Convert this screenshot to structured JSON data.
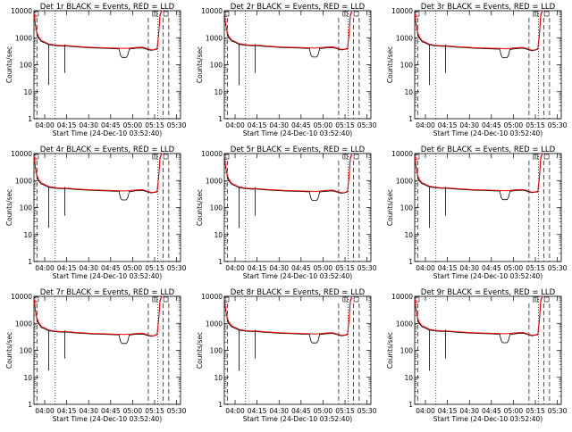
{
  "chart_data": [
    {
      "type": "line",
      "title": "Det 1r BLACK = Events, RED = LLD",
      "xlabel": "Start Time (24-Dec-10 03:52:40)",
      "ylabel": "Counts/sec",
      "x_tick_labels": [
        "04:00",
        "04:15",
        "04:30",
        "04:45",
        "05:00",
        "05:15",
        "05:30"
      ],
      "y_tick_labels": [
        "1",
        "10",
        "100",
        "1000",
        "10000"
      ],
      "y_scale": "log",
      "ylim": [
        1,
        10000
      ],
      "series": [
        {
          "name": "Events",
          "color": "#000000"
        },
        {
          "name": "LLD",
          "color": "#ff0000"
        }
      ]
    },
    {
      "type": "line",
      "title": "Det 2r BLACK = Events, RED = LLD",
      "xlabel": "Start Time (24-Dec-10 03:52:40)",
      "ylabel": "Counts/sec",
      "x_tick_labels": [
        "04:00",
        "04:15",
        "04:30",
        "04:45",
        "05:00",
        "05:15",
        "05:30"
      ],
      "y_tick_labels": [
        "1",
        "10",
        "100",
        "1000",
        "10000"
      ],
      "y_scale": "log",
      "ylim": [
        1,
        10000
      ],
      "series": [
        {
          "name": "Events",
          "color": "#000000"
        },
        {
          "name": "LLD",
          "color": "#ff0000"
        }
      ]
    },
    {
      "type": "line",
      "title": "Det 3r BLACK = Events, RED = LLD",
      "xlabel": "Start Time (24-Dec-10 03:52:40)",
      "ylabel": "Counts/sec",
      "x_tick_labels": [
        "04:00",
        "04:15",
        "04:30",
        "04:45",
        "05:00",
        "05:15",
        "05:30"
      ],
      "y_tick_labels": [
        "1",
        "10",
        "100",
        "1000",
        "10000"
      ],
      "y_scale": "log",
      "ylim": [
        1,
        10000
      ],
      "series": [
        {
          "name": "Events",
          "color": "#000000"
        },
        {
          "name": "LLD",
          "color": "#ff0000"
        }
      ]
    },
    {
      "type": "line",
      "title": "Det 4r BLACK = Events, RED = LLD",
      "xlabel": "Start Time (24-Dec-10 03:52:40)",
      "ylabel": "Counts/sec",
      "x_tick_labels": [
        "04:00",
        "04:15",
        "04:30",
        "04:45",
        "05:00",
        "05:15",
        "05:30"
      ],
      "y_tick_labels": [
        "1",
        "10",
        "100",
        "1000",
        "10000"
      ],
      "y_scale": "log",
      "ylim": [
        1,
        10000
      ],
      "series": [
        {
          "name": "Events",
          "color": "#000000"
        },
        {
          "name": "LLD",
          "color": "#ff0000"
        }
      ]
    },
    {
      "type": "line",
      "title": "Det 5r BLACK = Events, RED = LLD",
      "xlabel": "Start Time (24-Dec-10 03:52:40)",
      "ylabel": "Counts/sec",
      "x_tick_labels": [
        "04:00",
        "04:15",
        "04:30",
        "04:45",
        "05:00",
        "05:15",
        "05:30"
      ],
      "y_tick_labels": [
        "1",
        "10",
        "100",
        "1000",
        "10000"
      ],
      "y_scale": "log",
      "ylim": [
        1,
        10000
      ],
      "series": [
        {
          "name": "Events",
          "color": "#000000"
        },
        {
          "name": "LLD",
          "color": "#ff0000"
        }
      ]
    },
    {
      "type": "line",
      "title": "Det 6r BLACK = Events, RED = LLD",
      "xlabel": "Start Time (24-Dec-10 03:52:40)",
      "ylabel": "Counts/sec",
      "x_tick_labels": [
        "04:00",
        "04:15",
        "04:30",
        "04:45",
        "05:00",
        "05:15",
        "05:30"
      ],
      "y_tick_labels": [
        "1",
        "10",
        "100",
        "1000",
        "10000"
      ],
      "y_scale": "log",
      "ylim": [
        1,
        10000
      ],
      "series": [
        {
          "name": "Events",
          "color": "#000000"
        },
        {
          "name": "LLD",
          "color": "#ff0000"
        }
      ]
    },
    {
      "type": "line",
      "title": "Det 7r BLACK = Events, RED = LLD",
      "xlabel": "Start Time (24-Dec-10 03:52:40)",
      "ylabel": "Counts/sec",
      "x_tick_labels": [
        "04:00",
        "04:15",
        "04:30",
        "04:45",
        "05:00",
        "05:15",
        "05:30"
      ],
      "y_tick_labels": [
        "1",
        "10",
        "100",
        "1000",
        "10000"
      ],
      "y_scale": "log",
      "ylim": [
        1,
        10000
      ],
      "series": [
        {
          "name": "Events",
          "color": "#000000"
        },
        {
          "name": "LLD",
          "color": "#ff0000"
        }
      ]
    },
    {
      "type": "line",
      "title": "Det 8r BLACK = Events, RED = LLD",
      "xlabel": "Start Time (24-Dec-10 03:52:40)",
      "ylabel": "Counts/sec",
      "x_tick_labels": [
        "04:00",
        "04:15",
        "04:30",
        "04:45",
        "05:00",
        "05:15",
        "05:30"
      ],
      "y_tick_labels": [
        "1",
        "10",
        "100",
        "1000",
        "10000"
      ],
      "y_scale": "log",
      "ylim": [
        1,
        10000
      ],
      "series": [
        {
          "name": "Events",
          "color": "#000000"
        },
        {
          "name": "LLD",
          "color": "#ff0000"
        }
      ]
    },
    {
      "type": "line",
      "title": "Det 9r BLACK = Events, RED = LLD",
      "xlabel": "Start Time (24-Dec-10 03:52:40)",
      "ylabel": "Counts/sec",
      "x_tick_labels": [
        "04:00",
        "04:15",
        "04:30",
        "04:45",
        "05:00",
        "05:15",
        "05:30"
      ],
      "y_tick_labels": [
        "1",
        "10",
        "100",
        "1000",
        "10000"
      ],
      "y_scale": "log",
      "ylim": [
        1,
        10000
      ],
      "series": [
        {
          "name": "Events",
          "color": "#000000"
        },
        {
          "name": "LLD",
          "color": "#ff0000"
        }
      ]
    }
  ]
}
